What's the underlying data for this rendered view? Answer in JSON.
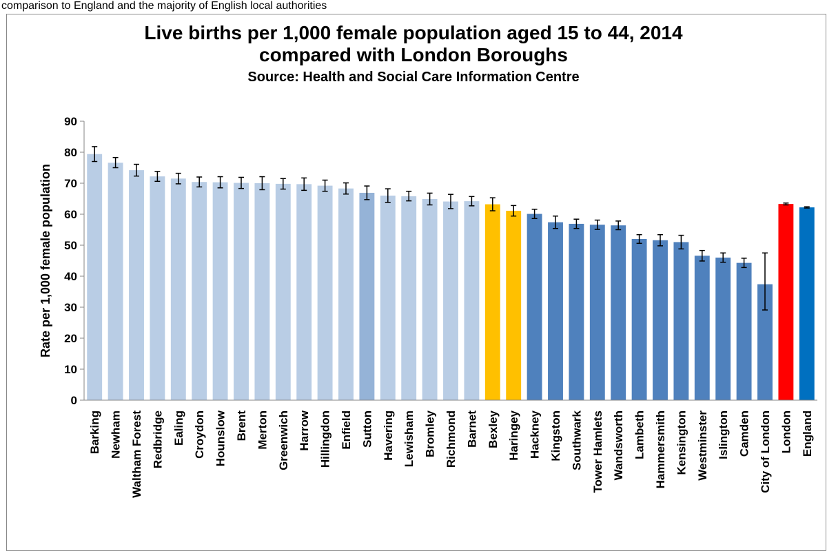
{
  "top_note": "comparison to England and the majority of English local authorities",
  "chart_data": {
    "type": "bar",
    "title": "Live births per 1,000 female population aged 15 to 44, 2014",
    "title_line2": "compared with London Boroughs",
    "subtitle": "Source: Health and Social Care Information Centre",
    "xlabel": "",
    "ylabel": "Rate per 1,000 female population",
    "ylim": [
      0,
      90
    ],
    "yticks": [
      "0",
      "10",
      "20",
      "30",
      "40",
      "50",
      "60",
      "70",
      "80",
      "90"
    ],
    "grid": false,
    "categories": [
      "Barking",
      "Newham",
      "Waltham Forest",
      "Redbridge",
      "Ealing",
      "Croydon",
      "Hounslow",
      "Brent",
      "Merton",
      "Greenwich",
      "Harrow",
      "Hillingdon",
      "Enfield",
      "Sutton",
      "Havering",
      "Lewisham",
      "Bromley",
      "Richmond",
      "Barnet",
      "Bexley",
      "Haringey",
      "Hackney",
      "Kingston",
      "Southwark",
      "Tower Hamlets",
      "Wandsworth",
      "Lambeth",
      "Hammersmith",
      "Kensington",
      "Westminster",
      "Islington",
      "Camden",
      "City of London",
      "London",
      "England"
    ],
    "values": [
      79.4,
      76.6,
      74.2,
      72.2,
      71.5,
      70.4,
      70.3,
      70.1,
      70.0,
      69.8,
      69.7,
      69.2,
      68.3,
      66.9,
      66.0,
      65.8,
      64.9,
      64.1,
      64.2,
      63.2,
      61.1,
      60.1,
      57.4,
      56.9,
      56.6,
      56.4,
      52.0,
      51.6,
      51.0,
      46.6,
      46.0,
      44.3,
      37.4,
      63.3,
      62.2
    ],
    "err_low": [
      77.0,
      75.0,
      72.3,
      70.6,
      69.8,
      68.8,
      68.5,
      68.3,
      67.9,
      68.1,
      67.7,
      67.4,
      66.5,
      64.7,
      63.8,
      64.3,
      63.0,
      61.8,
      62.7,
      61.1,
      59.4,
      58.6,
      55.4,
      55.4,
      55.1,
      55.0,
      50.6,
      49.8,
      48.8,
      44.9,
      44.5,
      42.8,
      29.1,
      63.0,
      62.0
    ],
    "err_high": [
      81.8,
      78.3,
      76.1,
      73.8,
      73.2,
      72.0,
      72.1,
      71.9,
      72.1,
      71.5,
      71.7,
      71.0,
      70.1,
      69.1,
      68.2,
      67.4,
      66.8,
      66.4,
      65.7,
      65.3,
      62.8,
      61.6,
      59.4,
      58.4,
      58.1,
      57.8,
      53.4,
      53.4,
      53.2,
      48.3,
      47.5,
      45.8,
      47.5,
      63.6,
      62.4
    ],
    "bar_colors": [
      "#b9cde5",
      "#b9cde5",
      "#b9cde5",
      "#b9cde5",
      "#b9cde5",
      "#b9cde5",
      "#b9cde5",
      "#b9cde5",
      "#b9cde5",
      "#b9cde5",
      "#b9cde5",
      "#b9cde5",
      "#b9cde5",
      "#95b3d7",
      "#b9cde5",
      "#b9cde5",
      "#b9cde5",
      "#b9cde5",
      "#b9cde5",
      "#ffc000",
      "#ffc000",
      "#4f81bd",
      "#4f81bd",
      "#4f81bd",
      "#4f81bd",
      "#4f81bd",
      "#4f81bd",
      "#4f81bd",
      "#4f81bd",
      "#4f81bd",
      "#4f81bd",
      "#4f81bd",
      "#4f81bd",
      "#ff0000",
      "#0070c0"
    ]
  }
}
